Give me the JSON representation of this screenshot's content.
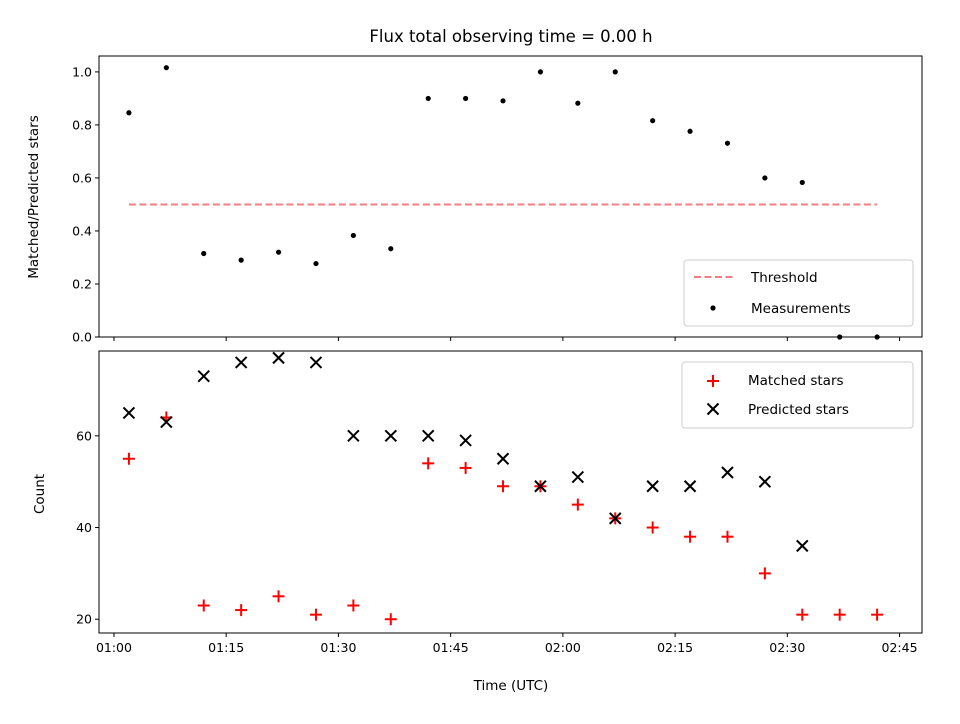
{
  "chart_data": [
    {
      "type": "scatter",
      "title": "Flux total observing time = 0.00 h",
      "xlabel": "",
      "ylabel": "Matched/Predicted stars",
      "ylim": [
        0.0,
        1.06
      ],
      "yticks": [
        0.0,
        0.2,
        0.4,
        0.6,
        0.8,
        1.0
      ],
      "ytick_labels": [
        "0.0",
        "0.2",
        "0.4",
        "0.6",
        "0.8",
        "1.0"
      ],
      "xlim": [
        "00:58",
        "02:48"
      ],
      "grid": false,
      "legend_position": "lower-right",
      "colors": {
        "threshold": "#f08080",
        "measurements": "#000000"
      },
      "threshold": {
        "name": "Threshold",
        "x": [
          "01:02",
          "02:42"
        ],
        "y": 0.5
      },
      "series": [
        {
          "name": "Measurements",
          "x": [
            "01:02",
            "01:07",
            "01:12",
            "01:17",
            "01:22",
            "01:27",
            "01:32",
            "01:37",
            "01:42",
            "01:47",
            "01:52",
            "01:57",
            "02:02",
            "02:07",
            "02:12",
            "02:17",
            "02:22",
            "02:27",
            "02:32",
            "02:37",
            "02:42"
          ],
          "y": [
            0.846,
            1.016,
            0.315,
            0.29,
            0.32,
            0.277,
            0.383,
            0.333,
            0.9,
            0.9,
            0.891,
            1.0,
            0.882,
            1.0,
            0.816,
            0.776,
            0.731,
            0.6,
            0.583,
            0.0,
            0.0
          ]
        }
      ]
    },
    {
      "type": "scatter",
      "title": "",
      "xlabel": "Time (UTC)",
      "ylabel": "Count",
      "ylim": [
        17,
        78.5
      ],
      "yticks": [
        20,
        40,
        60
      ],
      "ytick_labels": [
        "20",
        "40",
        "60"
      ],
      "xlim": [
        "00:58",
        "02:48"
      ],
      "xticks": [
        "01:00",
        "01:15",
        "01:30",
        "01:45",
        "02:00",
        "02:15",
        "02:30",
        "02:45"
      ],
      "xtick_labels": [
        "01:00",
        "01:15",
        "01:30",
        "01:45",
        "02:00",
        "02:15",
        "02:30",
        "02:45"
      ],
      "grid": false,
      "legend_position": "upper-right",
      "colors": {
        "matched": "#ff0000",
        "predicted": "#000000"
      },
      "series": [
        {
          "name": "Matched stars",
          "marker": "plus",
          "x": [
            "01:02",
            "01:07",
            "01:12",
            "01:17",
            "01:22",
            "01:27",
            "01:32",
            "01:37",
            "01:42",
            "01:47",
            "01:52",
            "01:57",
            "02:02",
            "02:07",
            "02:12",
            "02:17",
            "02:22",
            "02:27",
            "02:32",
            "02:37",
            "02:42"
          ],
          "y": [
            55,
            64,
            23,
            22,
            25,
            21,
            23,
            20,
            54,
            53,
            49,
            49,
            45,
            42,
            40,
            38,
            38,
            30,
            21,
            21,
            21
          ]
        },
        {
          "name": "Predicted stars",
          "marker": "x",
          "x": [
            "01:02",
            "01:07",
            "01:12",
            "01:17",
            "01:22",
            "01:27",
            "01:32",
            "01:37",
            "01:42",
            "01:47",
            "01:52",
            "01:57",
            "02:02",
            "02:07",
            "02:12",
            "02:17",
            "02:22",
            "02:27",
            "02:32"
          ],
          "y": [
            65,
            63,
            73,
            76,
            77,
            76,
            60,
            60,
            60,
            59,
            55,
            49,
            51,
            42,
            49,
            49,
            52,
            50,
            36
          ]
        }
      ]
    }
  ]
}
